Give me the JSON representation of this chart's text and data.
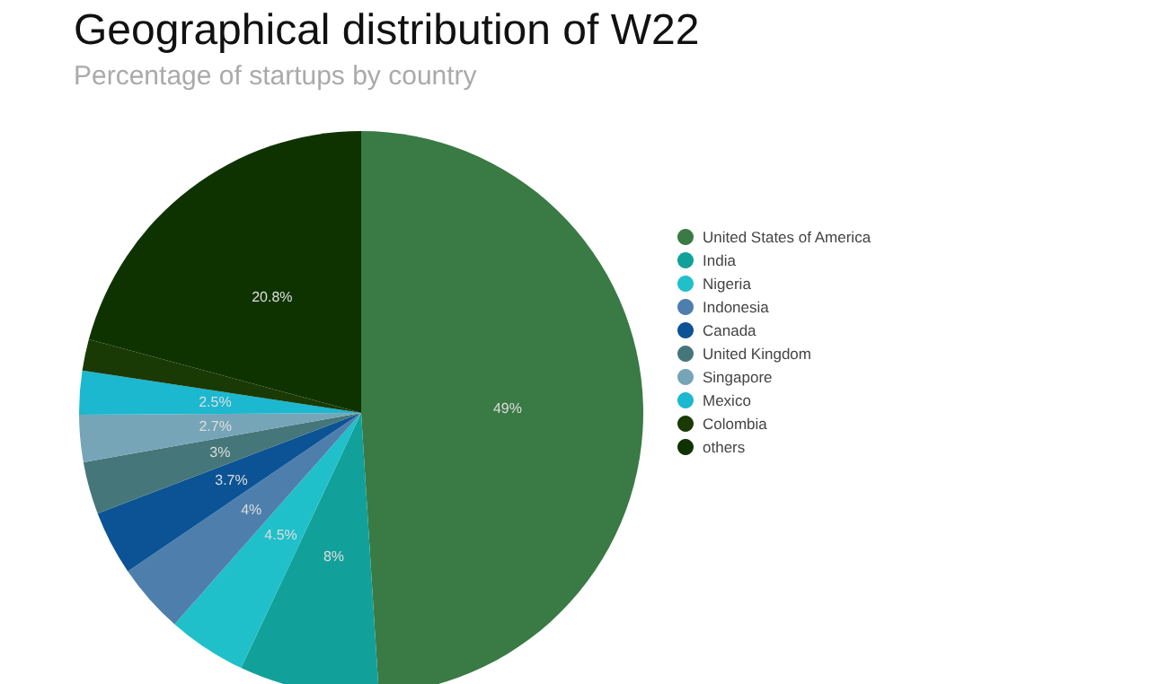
{
  "chart_data": {
    "type": "pie",
    "title": "Geographical distribution of W22",
    "subtitle": "Percentage of startups by country",
    "categories": [
      "United States of America",
      "India",
      "Nigeria",
      "Indonesia",
      "Canada",
      "United Kingdom",
      "Singapore",
      "Mexico",
      "Colombia",
      "others"
    ],
    "values": [
      49,
      8,
      4.5,
      4,
      3.7,
      3,
      2.7,
      2.5,
      1.8,
      20.8
    ],
    "value_labels": [
      "49%",
      "8%",
      "4.5%",
      "4%",
      "3.7%",
      "3%",
      "2.7%",
      "2.5%",
      null,
      "20.8%"
    ],
    "colors": [
      "#3a7a45",
      "#12a19a",
      "#1fc0c9",
      "#4e7fac",
      "#0b5394",
      "#45767a",
      "#76a5b8",
      "#1bb8d0",
      "#1a3a05",
      "#0f3300"
    ],
    "legend": "right"
  }
}
